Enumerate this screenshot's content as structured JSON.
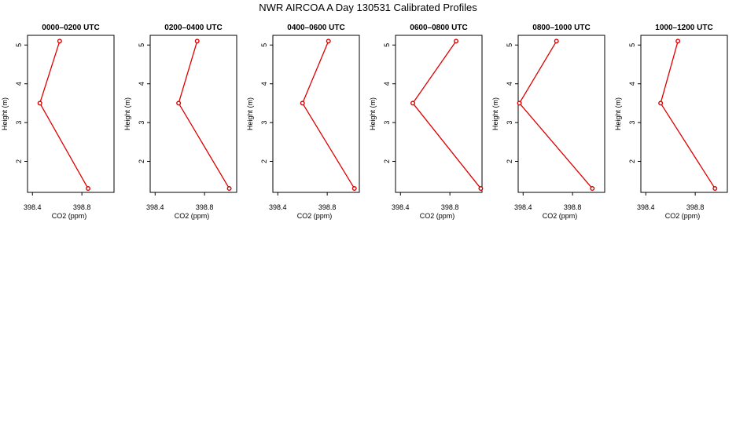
{
  "title": "NWR AIRCOA A  Day 130531  Calibrated Profiles",
  "colors": {
    "series": "#dd0000",
    "axis": "#000000",
    "background": "#ffffff"
  },
  "chart_data": [
    {
      "type": "line",
      "title": "0000–0200 UTC",
      "xlabel": "CO2 (ppm)",
      "ylabel": "Height (m)",
      "xlim": [
        398.36,
        399.06
      ],
      "ylim": [
        1.2,
        5.25
      ],
      "xticks": [
        398.4,
        398.8
      ],
      "yticks": [
        2,
        3,
        4,
        5
      ],
      "grid": false,
      "points": [
        {
          "x": 398.62,
          "y": 5.1
        },
        {
          "x": 398.46,
          "y": 3.5
        },
        {
          "x": 398.85,
          "y": 1.3
        }
      ]
    },
    {
      "type": "line",
      "title": "0200–0400 UTC",
      "xlabel": "CO2 (ppm)",
      "ylabel": "Height (m)",
      "xlim": [
        398.36,
        399.06
      ],
      "ylim": [
        1.2,
        5.25
      ],
      "xticks": [
        398.4,
        398.8
      ],
      "yticks": [
        2,
        3,
        4,
        5
      ],
      "grid": false,
      "points": [
        {
          "x": 398.74,
          "y": 5.1
        },
        {
          "x": 398.59,
          "y": 3.5
        },
        {
          "x": 399.0,
          "y": 1.3
        }
      ]
    },
    {
      "type": "line",
      "title": "0400–0600 UTC",
      "xlabel": "CO2 (ppm)",
      "ylabel": "Height (m)",
      "xlim": [
        398.36,
        399.06
      ],
      "ylim": [
        1.2,
        5.25
      ],
      "xticks": [
        398.4,
        398.8
      ],
      "yticks": [
        2,
        3,
        4,
        5
      ],
      "grid": false,
      "points": [
        {
          "x": 398.81,
          "y": 5.1
        },
        {
          "x": 398.6,
          "y": 3.5
        },
        {
          "x": 399.02,
          "y": 1.3
        }
      ]
    },
    {
      "type": "line",
      "title": "0600–0800 UTC",
      "xlabel": "CO2 (ppm)",
      "ylabel": "Height (m)",
      "xlim": [
        398.36,
        399.06
      ],
      "ylim": [
        1.2,
        5.25
      ],
      "xticks": [
        398.4,
        398.8
      ],
      "yticks": [
        2,
        3,
        4,
        5
      ],
      "grid": false,
      "points": [
        {
          "x": 398.85,
          "y": 5.1
        },
        {
          "x": 398.5,
          "y": 3.5
        },
        {
          "x": 399.05,
          "y": 1.3
        }
      ]
    },
    {
      "type": "line",
      "title": "0800–1000 UTC",
      "xlabel": "CO2 (ppm)",
      "ylabel": "Height (m)",
      "xlim": [
        398.36,
        399.06
      ],
      "ylim": [
        1.2,
        5.25
      ],
      "xticks": [
        398.4,
        398.8
      ],
      "yticks": [
        2,
        3,
        4,
        5
      ],
      "grid": false,
      "points": [
        {
          "x": 398.67,
          "y": 5.1
        },
        {
          "x": 398.37,
          "y": 3.5
        },
        {
          "x": 398.96,
          "y": 1.3
        }
      ]
    },
    {
      "type": "line",
      "title": "1000–1200 UTC",
      "xlabel": "CO2 (ppm)",
      "ylabel": "Height (m)",
      "xlim": [
        398.36,
        399.06
      ],
      "ylim": [
        1.2,
        5.25
      ],
      "xticks": [
        398.4,
        398.8
      ],
      "yticks": [
        2,
        3,
        4,
        5
      ],
      "grid": false,
      "points": [
        {
          "x": 398.66,
          "y": 5.1
        },
        {
          "x": 398.52,
          "y": 3.5
        },
        {
          "x": 398.96,
          "y": 1.3
        }
      ]
    }
  ]
}
